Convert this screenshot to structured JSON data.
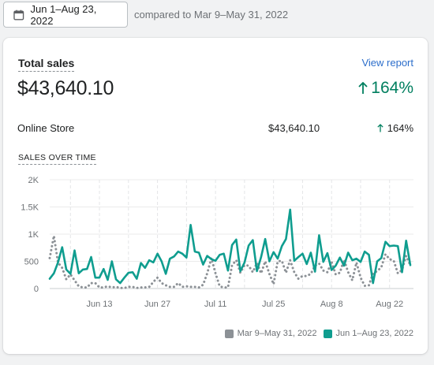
{
  "header": {
    "date_range": "Jun 1–Aug 23, 2022",
    "compare_text": "compared to Mar 9–May 31, 2022",
    "calendar_icon": "calendar-icon"
  },
  "card": {
    "title": "Total sales",
    "view_report": "View report",
    "total_value": "$43,640.10",
    "total_change": "164%",
    "channel": {
      "label": "Online Store",
      "value": "$43,640.10",
      "change": "164%"
    },
    "chart_title": "SALES OVER TIME",
    "legend": [
      {
        "label": "Mar 9–May 31, 2022",
        "color": "#8c9196"
      },
      {
        "label": "Jun 1–Aug 23, 2022",
        "color": "#0f9d8f"
      }
    ]
  },
  "colors": {
    "current": "#0f9d8f",
    "previous": "#8c9196",
    "positive": "#007f5f",
    "link": "#2c6ecb"
  },
  "chart_data": {
    "type": "line",
    "title": "SALES OVER TIME",
    "ylim": [
      0,
      2000
    ],
    "y_ticks": [
      "2K",
      "1.5K",
      "1K",
      "500",
      "0"
    ],
    "x_ticks": [
      "Jun 13",
      "Jun 27",
      "Jul 11",
      "Jul 25",
      "Aug 8",
      "Aug 22"
    ],
    "x_range": [
      "Jun 1",
      "Aug 23"
    ],
    "series": [
      {
        "name": "Jun 1–Aug 23, 2022",
        "style": "solid",
        "values": [
          180,
          280,
          480,
          760,
          350,
          270,
          700,
          280,
          350,
          360,
          580,
          200,
          200,
          360,
          160,
          500,
          170,
          100,
          200,
          290,
          300,
          180,
          470,
          380,
          520,
          480,
          640,
          500,
          270,
          550,
          590,
          680,
          640,
          570,
          1170,
          680,
          660,
          440,
          600,
          540,
          510,
          620,
          640,
          330,
          800,
          900,
          320,
          480,
          790,
          890,
          320,
          580,
          910,
          500,
          670,
          550,
          780,
          910,
          1450,
          510,
          580,
          640,
          450,
          660,
          310,
          980,
          490,
          650,
          340,
          420,
          570,
          420,
          660,
          520,
          550,
          490,
          680,
          620,
          100,
          500,
          560,
          860,
          780,
          790,
          780,
          300,
          880,
          430
        ]
      },
      {
        "name": "Mar 9–May 31, 2022",
        "style": "dotted",
        "values": [
          560,
          970,
          480,
          380,
          170,
          260,
          150,
          40,
          20,
          20,
          100,
          100,
          20,
          20,
          40,
          20,
          30,
          10,
          10,
          30,
          30,
          10,
          20,
          20,
          30,
          120,
          200,
          100,
          60,
          30,
          30,
          100,
          30,
          40,
          30,
          30,
          20,
          70,
          280,
          560,
          280,
          40,
          20,
          20,
          430,
          520,
          290,
          430,
          420,
          300,
          470,
          280,
          500,
          270,
          80,
          500,
          510,
          290,
          520,
          300,
          180,
          230,
          230,
          270,
          420,
          460,
          330,
          300,
          490,
          260,
          290,
          530,
          300,
          150,
          480,
          200,
          50,
          60,
          280,
          320,
          390,
          630,
          540,
          510,
          280,
          340,
          600,
          430
        ]
      }
    ]
  }
}
